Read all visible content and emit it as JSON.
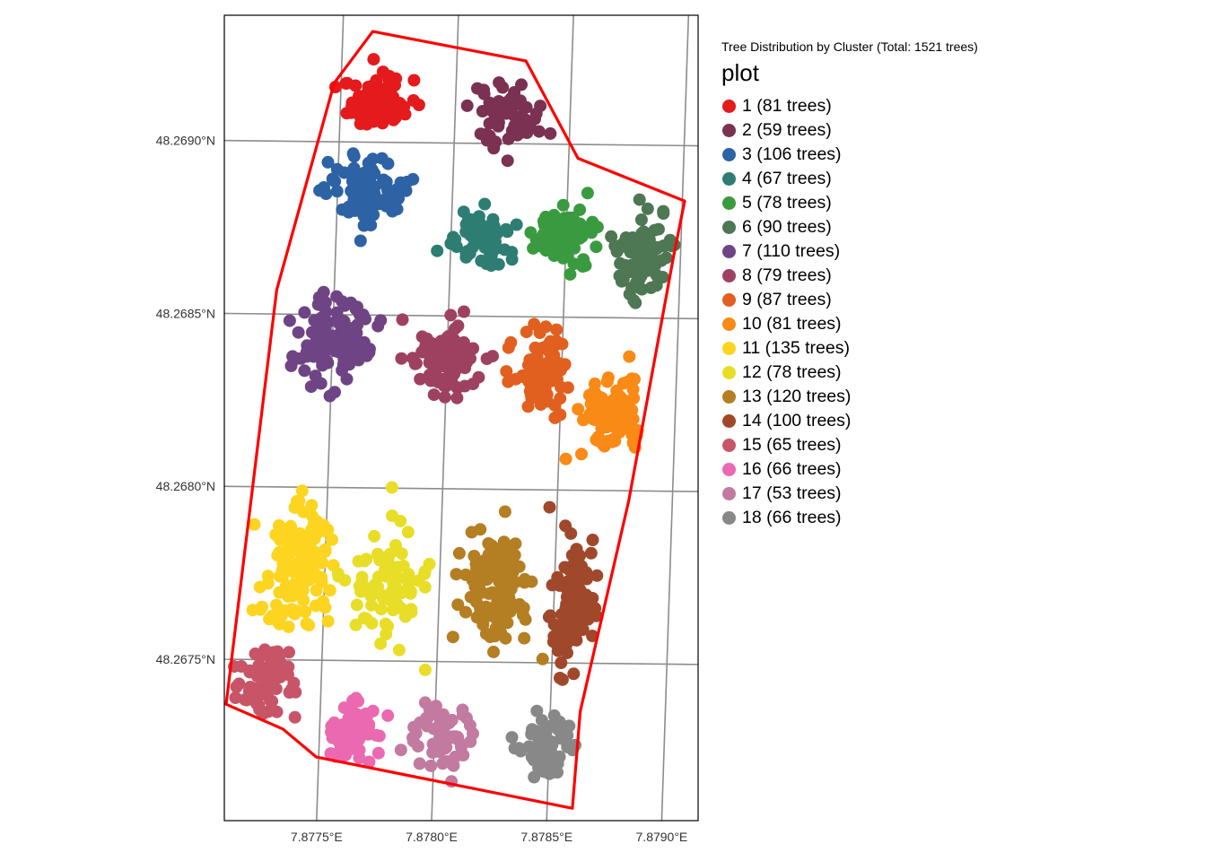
{
  "chart_data": {
    "type": "scatter",
    "title": "Tree Distribution by Cluster (Total: 1521 trees)",
    "legend_title": "plot",
    "legend_position": "right",
    "grid": true,
    "x_axis": {
      "ticks": [
        7.8775,
        7.878,
        7.8785,
        7.879
      ],
      "tick_labels": [
        "7.8775°E",
        "7.8780°E",
        "7.8785°E",
        "7.8790°E"
      ],
      "range": [
        7.87705,
        7.87911
      ]
    },
    "y_axis": {
      "ticks": [
        48.2675,
        48.268,
        48.2685,
        48.269
      ],
      "tick_labels": [
        "48.2675°N",
        "48.2680°N",
        "48.2685°N",
        "48.2690°N"
      ],
      "range": [
        48.26704,
        48.26937
      ]
    },
    "boundary_polygon": [
      [
        7.87763,
        48.26932
      ],
      [
        7.8783,
        48.26924
      ],
      [
        7.87854,
        48.26896
      ],
      [
        7.87901,
        48.26884
      ],
      [
        7.87897,
        48.26868
      ],
      [
        7.87881,
        48.26797
      ],
      [
        7.87863,
        48.26736
      ],
      [
        7.87861,
        48.26708
      ],
      [
        7.87789,
        48.26717
      ],
      [
        7.87749,
        48.26722
      ],
      [
        7.87734,
        48.2673
      ],
      [
        7.87709,
        48.26737
      ],
      [
        7.87725,
        48.26857
      ],
      [
        7.87747,
        48.26917
      ]
    ],
    "series": [
      {
        "name": "1 (81 trees)",
        "color": "#e41a1c",
        "count": 81,
        "center": [
          7.87768,
          48.26912
        ],
        "spread": [
          0.00015,
          8e-05
        ]
      },
      {
        "name": "2 (59 trees)",
        "color": "#7b3152",
        "count": 59,
        "center": [
          7.87822,
          48.26908
        ],
        "spread": [
          0.00013,
          8e-05
        ]
      },
      {
        "name": "3 (106 trees)",
        "color": "#2d62a5",
        "count": 106,
        "center": [
          7.87763,
          48.26885
        ],
        "spread": [
          0.00013,
          9e-05
        ]
      },
      {
        "name": "4 (67 trees)",
        "color": "#2e7d73",
        "count": 67,
        "center": [
          7.87814,
          48.26873
        ],
        "spread": [
          0.00012,
          8e-05
        ]
      },
      {
        "name": "5 (78 trees)",
        "color": "#3a9a3f",
        "count": 78,
        "center": [
          7.87849,
          48.26874
        ],
        "spread": [
          0.00012,
          8e-05
        ]
      },
      {
        "name": "6 (90 trees)",
        "color": "#4e7753",
        "count": 90,
        "center": [
          7.87884,
          48.26868
        ],
        "spread": [
          0.00011,
          0.0001
        ]
      },
      {
        "name": "7 (110 trees)",
        "color": "#6e4485",
        "count": 110,
        "center": [
          7.8775,
          48.26842
        ],
        "spread": [
          0.00015,
          0.00012
        ]
      },
      {
        "name": "8 (79 trees)",
        "color": "#9e4161",
        "count": 79,
        "center": [
          7.878,
          48.26837
        ],
        "spread": [
          0.00014,
          0.0001
        ]
      },
      {
        "name": "9 (87 trees)",
        "color": "#e2601f",
        "count": 87,
        "center": [
          7.87842,
          48.26835
        ],
        "spread": [
          0.00011,
          0.00011
        ]
      },
      {
        "name": "10 (81 trees)",
        "color": "#f98a16",
        "count": 81,
        "center": [
          7.87873,
          48.26822
        ],
        "spread": [
          0.00012,
          0.00011
        ]
      },
      {
        "name": "11 (135 trees)",
        "color": "#fdd41f",
        "count": 135,
        "center": [
          7.87737,
          48.26778
        ],
        "spread": [
          0.00014,
          0.00017
        ]
      },
      {
        "name": "12 (78 trees)",
        "color": "#e8de28",
        "count": 78,
        "center": [
          7.87778,
          48.26773
        ],
        "spread": [
          0.00014,
          0.00015
        ]
      },
      {
        "name": "13 (120 trees)",
        "color": "#b47e22",
        "count": 120,
        "center": [
          7.87824,
          48.26772
        ],
        "spread": [
          0.00014,
          0.00015
        ]
      },
      {
        "name": "14 (100 trees)",
        "color": "#a0482b",
        "count": 100,
        "center": [
          7.8786,
          48.26765
        ],
        "spread": [
          0.0001,
          0.00018
        ]
      },
      {
        "name": "15 (65 trees)",
        "color": "#c85468",
        "count": 65,
        "center": [
          7.87725,
          48.26743
        ],
        "spread": [
          0.00012,
          0.00011
        ]
      },
      {
        "name": "16 (66 trees)",
        "color": "#eb69b0",
        "count": 66,
        "center": [
          7.87765,
          48.2673
        ],
        "spread": [
          0.00012,
          9e-05
        ]
      },
      {
        "name": "17 (53 trees)",
        "color": "#c27aa0",
        "count": 53,
        "center": [
          7.87805,
          48.26728
        ],
        "spread": [
          0.00013,
          9e-05
        ]
      },
      {
        "name": "18 (66 trees)",
        "color": "#888888",
        "count": 66,
        "center": [
          7.8785,
          48.26725
        ],
        "spread": [
          0.00011,
          9e-05
        ]
      }
    ]
  },
  "colors": {
    "boundary": "#ff0000",
    "grid": "#8c8c8c",
    "panel_border": "#000000"
  }
}
